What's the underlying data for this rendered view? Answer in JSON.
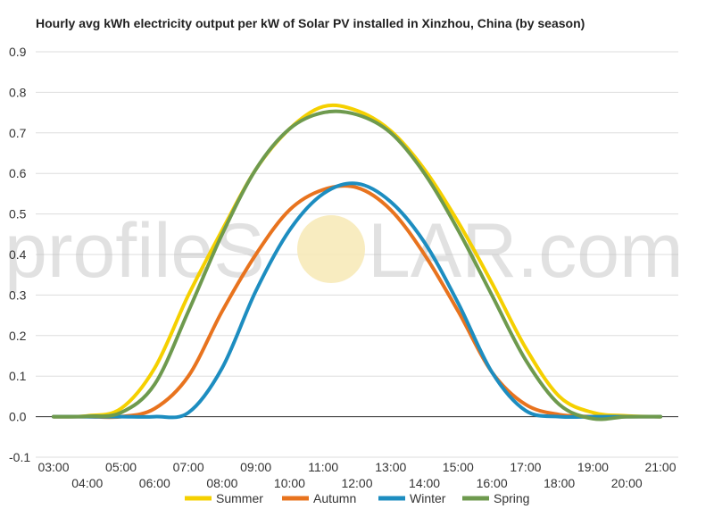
{
  "watermark": {
    "left": "profileS",
    "right": "LAR.com"
  },
  "chart_data": {
    "type": "line",
    "title": "Hourly avg kWh electricity output per kW of Solar PV installed in Xinzhou, China (by season)",
    "xlabel": "",
    "ylabel": "",
    "ylim": [
      -0.1,
      0.9
    ],
    "yticks": [
      "-0.1",
      "0.0",
      "0.1",
      "0.2",
      "0.3",
      "0.4",
      "0.5",
      "0.6",
      "0.7",
      "0.8",
      "0.9"
    ],
    "x": [
      "03:00",
      "04:00",
      "05:00",
      "06:00",
      "07:00",
      "08:00",
      "09:00",
      "10:00",
      "11:00",
      "12:00",
      "13:00",
      "14:00",
      "15:00",
      "16:00",
      "17:00",
      "18:00",
      "19:00",
      "20:00",
      "21:00"
    ],
    "grid": true,
    "legend": "bottom",
    "series": [
      {
        "name": "Summer",
        "color": "#f5d000",
        "values": [
          0.0,
          0.002,
          0.02,
          0.12,
          0.3,
          0.46,
          0.61,
          0.71,
          0.765,
          0.755,
          0.705,
          0.61,
          0.48,
          0.33,
          0.17,
          0.05,
          0.01,
          0.002,
          0.0
        ]
      },
      {
        "name": "Autumn",
        "color": "#e8731e",
        "values": [
          0.0,
          0.0,
          0.0,
          0.02,
          0.1,
          0.26,
          0.4,
          0.51,
          0.56,
          0.565,
          0.51,
          0.4,
          0.26,
          0.11,
          0.03,
          0.005,
          0.0,
          0.0,
          0.0
        ]
      },
      {
        "name": "Winter",
        "color": "#1d8dc0",
        "values": [
          0.0,
          0.0,
          0.0,
          0.0,
          0.01,
          0.12,
          0.31,
          0.46,
          0.55,
          0.575,
          0.53,
          0.43,
          0.28,
          0.11,
          0.015,
          0.0,
          0.0,
          0.0,
          0.0
        ]
      },
      {
        "name": "Spring",
        "color": "#6e9a4e",
        "values": [
          0.0,
          0.001,
          0.01,
          0.08,
          0.26,
          0.45,
          0.61,
          0.71,
          0.75,
          0.745,
          0.7,
          0.6,
          0.46,
          0.3,
          0.14,
          0.03,
          -0.005,
          0.0,
          0.0
        ]
      }
    ]
  }
}
